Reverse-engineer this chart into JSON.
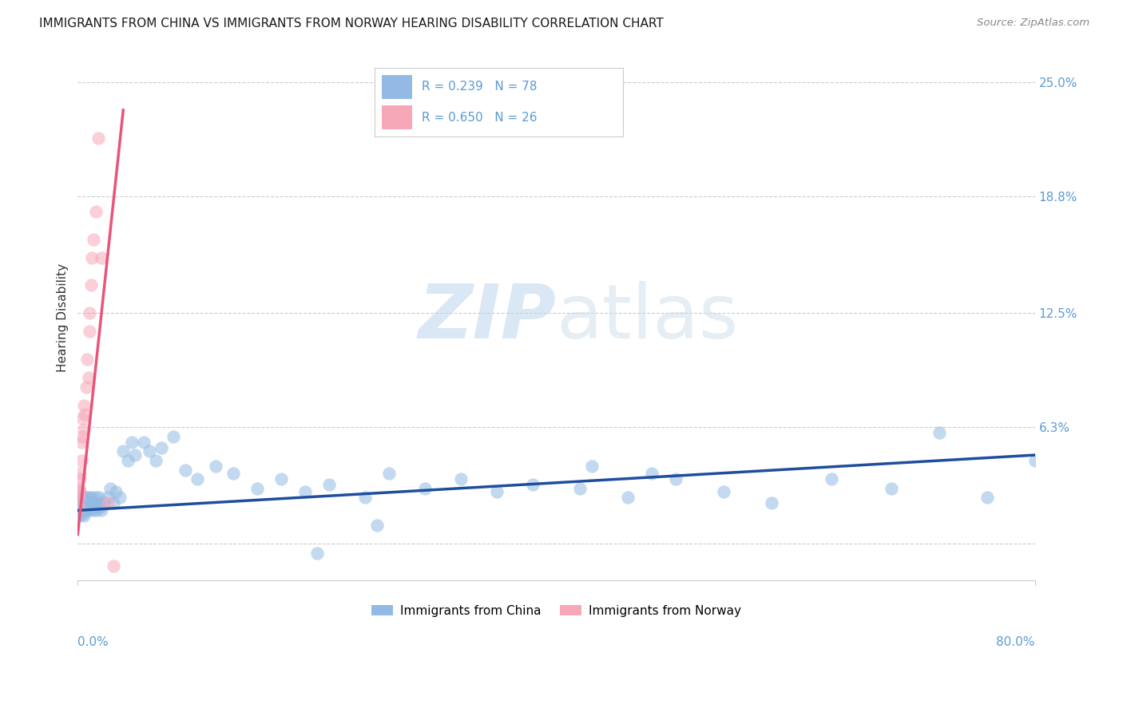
{
  "title": "IMMIGRANTS FROM CHINA VS IMMIGRANTS FROM NORWAY HEARING DISABILITY CORRELATION CHART",
  "source": "Source: ZipAtlas.com",
  "ylabel": "Hearing Disability",
  "legend_label_china": "Immigrants from China",
  "legend_label_norway": "Immigrants from Norway",
  "china_color": "#92BAE4",
  "norway_color": "#F7A8B8",
  "china_line_color": "#1F4E9C",
  "norway_line_color": "#E8547A",
  "china_R": 0.239,
  "china_N": 78,
  "norway_R": 0.65,
  "norway_N": 26,
  "watermark_zip": "ZIP",
  "watermark_atlas": "atlas",
  "xmin": 0.0,
  "xmax": 0.8,
  "ymin": -0.02,
  "ymax": 0.265,
  "ytick_vals": [
    0.0,
    0.063,
    0.125,
    0.188,
    0.25
  ],
  "ytick_labels": [
    "",
    "6.3%",
    "12.5%",
    "18.8%",
    "25.0%"
  ],
  "china_line_x": [
    0.0,
    0.8
  ],
  "china_line_y": [
    0.018,
    0.048
  ],
  "norway_line_x": [
    0.0,
    0.038
  ],
  "norway_line_y": [
    0.005,
    0.235
  ],
  "china_x": [
    0.001,
    0.001,
    0.001,
    0.002,
    0.002,
    0.002,
    0.003,
    0.003,
    0.003,
    0.004,
    0.004,
    0.005,
    0.005,
    0.005,
    0.006,
    0.006,
    0.007,
    0.007,
    0.008,
    0.008,
    0.009,
    0.01,
    0.01,
    0.011,
    0.012,
    0.012,
    0.013,
    0.014,
    0.015,
    0.015,
    0.016,
    0.017,
    0.018,
    0.019,
    0.02,
    0.022,
    0.025,
    0.027,
    0.03,
    0.032,
    0.035,
    0.038,
    0.042,
    0.045,
    0.048,
    0.055,
    0.06,
    0.065,
    0.07,
    0.08,
    0.09,
    0.1,
    0.115,
    0.13,
    0.15,
    0.17,
    0.19,
    0.21,
    0.24,
    0.26,
    0.29,
    0.32,
    0.35,
    0.38,
    0.42,
    0.46,
    0.5,
    0.54,
    0.58,
    0.63,
    0.68,
    0.72,
    0.76,
    0.8,
    0.43,
    0.48,
    0.2,
    0.25
  ],
  "china_y": [
    0.02,
    0.025,
    0.015,
    0.022,
    0.018,
    0.028,
    0.025,
    0.02,
    0.018,
    0.022,
    0.016,
    0.025,
    0.02,
    0.015,
    0.022,
    0.018,
    0.025,
    0.02,
    0.022,
    0.018,
    0.02,
    0.025,
    0.018,
    0.022,
    0.025,
    0.02,
    0.018,
    0.022,
    0.025,
    0.02,
    0.018,
    0.022,
    0.025,
    0.02,
    0.018,
    0.022,
    0.025,
    0.03,
    0.022,
    0.028,
    0.025,
    0.05,
    0.045,
    0.055,
    0.048,
    0.055,
    0.05,
    0.045,
    0.052,
    0.058,
    0.04,
    0.035,
    0.042,
    0.038,
    0.03,
    0.035,
    0.028,
    0.032,
    0.025,
    0.038,
    0.03,
    0.035,
    0.028,
    0.032,
    0.03,
    0.025,
    0.035,
    0.028,
    0.022,
    0.035,
    0.03,
    0.06,
    0.025,
    0.045,
    0.042,
    0.038,
    -0.005,
    0.01
  ],
  "norway_x": [
    0.001,
    0.001,
    0.001,
    0.002,
    0.002,
    0.002,
    0.003,
    0.003,
    0.004,
    0.004,
    0.005,
    0.005,
    0.006,
    0.007,
    0.008,
    0.009,
    0.01,
    0.01,
    0.011,
    0.012,
    0.013,
    0.015,
    0.017,
    0.02,
    0.025,
    0.03
  ],
  "norway_y": [
    0.025,
    0.02,
    0.03,
    0.035,
    0.038,
    0.028,
    0.045,
    0.055,
    0.058,
    0.068,
    0.062,
    0.075,
    0.07,
    0.085,
    0.1,
    0.09,
    0.115,
    0.125,
    0.14,
    0.155,
    0.165,
    0.18,
    0.22,
    0.155,
    0.022,
    -0.012
  ]
}
